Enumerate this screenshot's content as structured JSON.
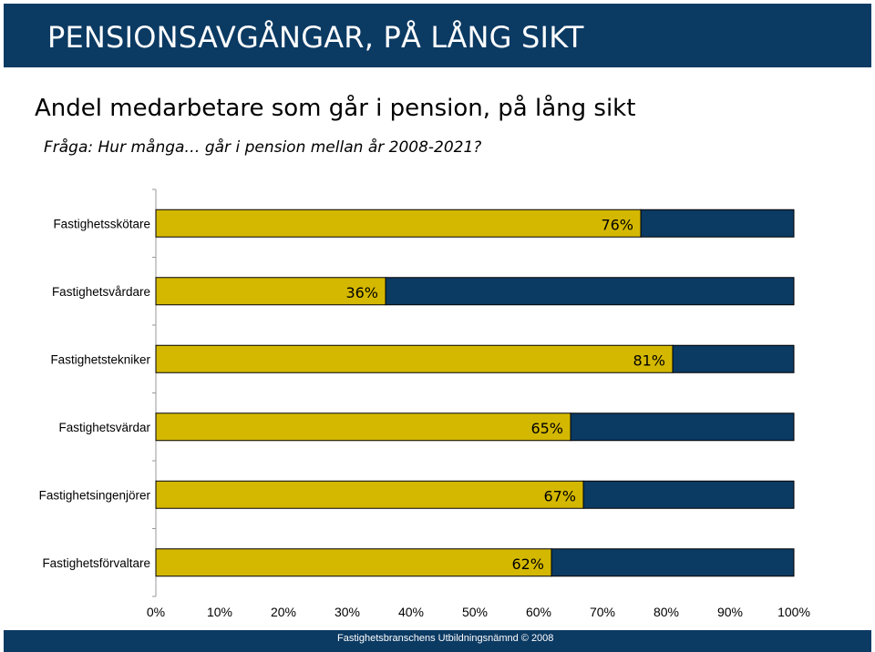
{
  "header": {
    "title": "PENSIONSAVGÅNGAR, PÅ LÅNG SIKT"
  },
  "subtitle": "Andel medarbetare som går i pension, på lång sikt",
  "question": "Fråga: Hur många… går i pension mellan år 2008-2021?",
  "footer": {
    "text": "Fastighetsbranschens Utbildningsnämnd © 2008"
  },
  "colors": {
    "header_band": "#0b3a63",
    "bar_value": "#d4b800",
    "bar_remainder": "#0b3a63"
  },
  "chart_data": {
    "type": "bar",
    "orientation": "horizontal",
    "stacked": true,
    "categories": [
      "Fastighetsskötare",
      "Fastighetsvårdare",
      "Fastighetstekniker",
      "Fastighetsvärdar",
      "Fastighetsingenjörer",
      "Fastighetsförvaltare"
    ],
    "values": [
      76,
      36,
      81,
      65,
      67,
      62
    ],
    "value_labels": [
      "76%",
      "36%",
      "81%",
      "65%",
      "67%",
      "62%"
    ],
    "xlim": [
      0,
      100
    ],
    "x_ticks": [
      "0%",
      "10%",
      "20%",
      "30%",
      "40%",
      "50%",
      "60%",
      "70%",
      "80%",
      "90%",
      "100%"
    ],
    "grid": false,
    "legend": "none"
  }
}
